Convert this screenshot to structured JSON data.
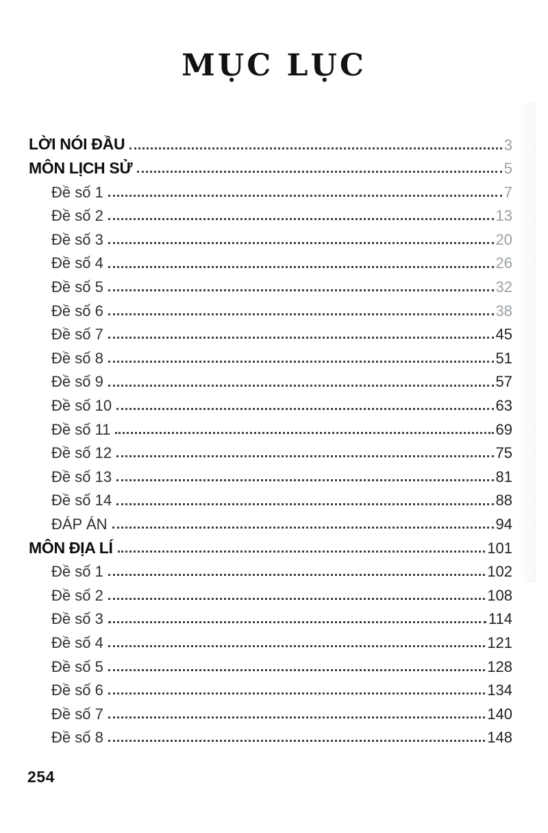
{
  "page": {
    "title": "MỤC LỤC",
    "page_number": "254"
  },
  "colors": {
    "ink": "#1a1a1a",
    "light_page_number": "#9aa0a5",
    "dot_leader": "#3d3d3d"
  },
  "toc": {
    "entries": [
      {
        "label": "LỜI NÓI ĐẦU",
        "page": "3",
        "level": "section",
        "shade": "light"
      },
      {
        "label": "MÔN LỊCH SỬ",
        "page": "5",
        "level": "section",
        "shade": "light"
      },
      {
        "label": "Đề số 1",
        "page": "7",
        "level": "entry",
        "shade": "light"
      },
      {
        "label": "Đề số 2",
        "page": "13",
        "level": "entry",
        "shade": "light"
      },
      {
        "label": "Đề số 3",
        "page": "20",
        "level": "entry",
        "shade": "light"
      },
      {
        "label": "Đề số 4",
        "page": "26",
        "level": "entry",
        "shade": "light"
      },
      {
        "label": "Đề số 5",
        "page": "32",
        "level": "entry",
        "shade": "light"
      },
      {
        "label": "Đề số 6",
        "page": "38",
        "level": "entry",
        "shade": "light"
      },
      {
        "label": "Đề số 7",
        "page": "45",
        "level": "entry",
        "shade": "dark"
      },
      {
        "label": "Đề số 8",
        "page": "51",
        "level": "entry",
        "shade": "dark"
      },
      {
        "label": "Đề số 9",
        "page": "57",
        "level": "entry",
        "shade": "dark"
      },
      {
        "label": "Đề số 10",
        "page": "63",
        "level": "entry",
        "shade": "dark"
      },
      {
        "label": "Đề số 11",
        "page": "69",
        "level": "entry",
        "shade": "dark"
      },
      {
        "label": "Đề số 12",
        "page": "75",
        "level": "entry",
        "shade": "dark"
      },
      {
        "label": "Đề số 13",
        "page": "81",
        "level": "entry",
        "shade": "dark"
      },
      {
        "label": "Đề số 14",
        "page": "88",
        "level": "entry",
        "shade": "dark"
      },
      {
        "label": "ĐÁP ÁN",
        "page": "94",
        "level": "entry",
        "shade": "dark"
      },
      {
        "label": "MÔN ĐỊA LÍ",
        "page": "101",
        "level": "section",
        "shade": "dark"
      },
      {
        "label": "Đề số 1",
        "page": "102",
        "level": "entry",
        "shade": "dark"
      },
      {
        "label": "Đề số 2",
        "page": "108",
        "level": "entry",
        "shade": "dark"
      },
      {
        "label": "Đề số 3",
        "page": "114",
        "level": "entry",
        "shade": "dark"
      },
      {
        "label": "Đề số 4",
        "page": "121",
        "level": "entry",
        "shade": "dark"
      },
      {
        "label": "Đề số 5",
        "page": "128",
        "level": "entry",
        "shade": "dark"
      },
      {
        "label": "Đề số 6",
        "page": "134",
        "level": "entry",
        "shade": "dark"
      },
      {
        "label": "Đề số 7",
        "page": "140",
        "level": "entry",
        "shade": "dark"
      },
      {
        "label": "Đề số 8",
        "page": "148",
        "level": "entry",
        "shade": "dark"
      }
    ]
  }
}
